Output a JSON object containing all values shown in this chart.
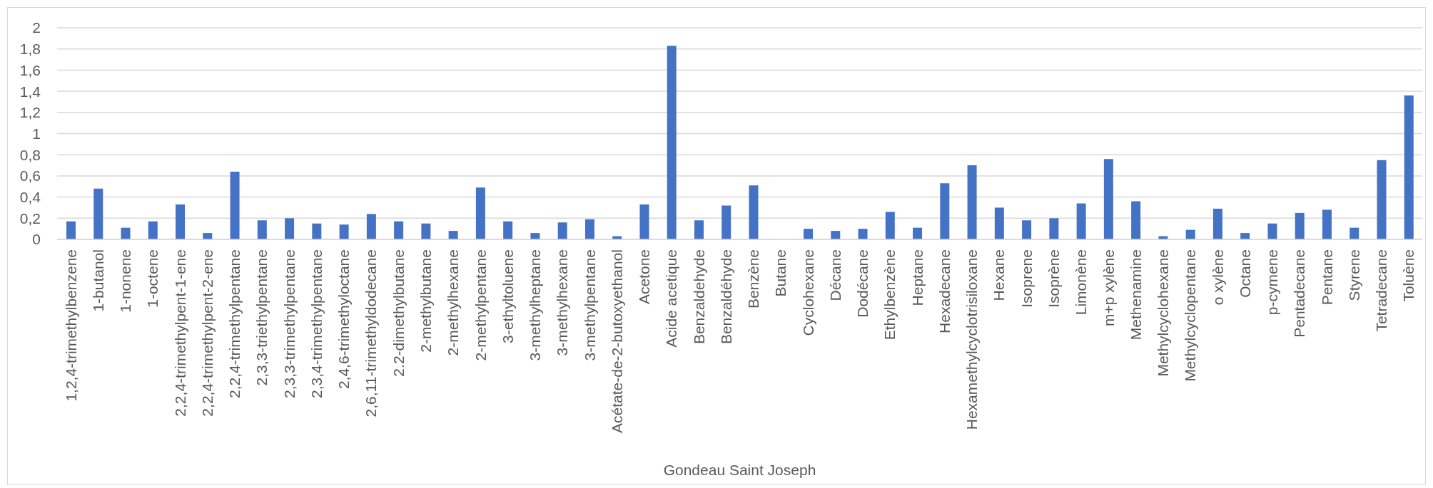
{
  "chart_data": {
    "type": "bar",
    "xlabel": "Gondeau Saint Joseph",
    "categories": [
      "1,2,4-trimethylbenzene",
      "1-butanol",
      "1-nonene",
      "1-octene",
      "2,2,4-trimethylpent-1-ene",
      "2,2,4-trimethylpent-2-ene",
      "2,2,4-trimethylpentane",
      "2,3,3-triethylpentane",
      "2,3,3-trimethylpentane",
      "2,3,4-trimethylpentane",
      "2,4,6-trimethyloctane",
      "2,6,11-trimethyldodecane",
      "2.2-dimethylbutane",
      "2-methylbutane",
      "2-methylhexane",
      "2-methylpentane",
      "3-ethyltoluene",
      "3-methylheptane",
      "3-methylhexane",
      "3-methylpentane",
      "Acétate-de-2-butoxyethanol",
      "Acetone",
      "Acide acetique",
      "Benzaldehyde",
      "Benzaldéhyde",
      "Benzène",
      "Butane",
      "Cyclohexane",
      "Décane",
      "Dodécane",
      "Ethylbenzène",
      "Heptane",
      "Hexadecane",
      "Hexamethylcyclotrisiloxane",
      "Hexane",
      "Isoprene",
      "Isoprène",
      "Limonène",
      "m+p xylène",
      "Methenamine",
      "Methylcyclohexane",
      "Methylcyclopentane",
      "o xylène",
      "Octane",
      "p-cymene",
      "Pentadecane",
      "Pentane",
      "Styrene",
      "Tetradecane",
      "Toluène"
    ],
    "values": [
      0.17,
      0.48,
      0.11,
      0.17,
      0.33,
      0.06,
      0.64,
      0.18,
      0.2,
      0.15,
      0.14,
      0.24,
      0.17,
      0.15,
      0.08,
      0.49,
      0.17,
      0.06,
      0.16,
      0.19,
      0.03,
      0.33,
      1.83,
      0.18,
      0.32,
      0.51,
      0,
      0.1,
      0.08,
      0.1,
      0.26,
      0.11,
      0.53,
      0.7,
      0.3,
      0.18,
      0.2,
      0.34,
      0.76,
      0.36,
      0.03,
      0.09,
      0.29,
      0.06,
      0.15,
      0.25,
      0.28,
      0.11,
      0.75,
      1.36
    ],
    "color": "#4472c4",
    "ylim": [
      0,
      2
    ],
    "yticks": [
      0,
      {
        "value": 0.2,
        "label": "0,2"
      },
      {
        "value": 0.4,
        "label": "0,4"
      },
      {
        "value": 0.6,
        "label": "0,6"
      },
      {
        "value": 0.8,
        "label": "0,8"
      },
      1,
      {
        "value": 1.2,
        "label": "1,2"
      },
      {
        "value": 1.4,
        "label": "1,4"
      },
      {
        "value": 1.6,
        "label": "1,6"
      },
      {
        "value": 1.8,
        "label": "1,8"
      },
      2
    ],
    "grid": "y"
  }
}
